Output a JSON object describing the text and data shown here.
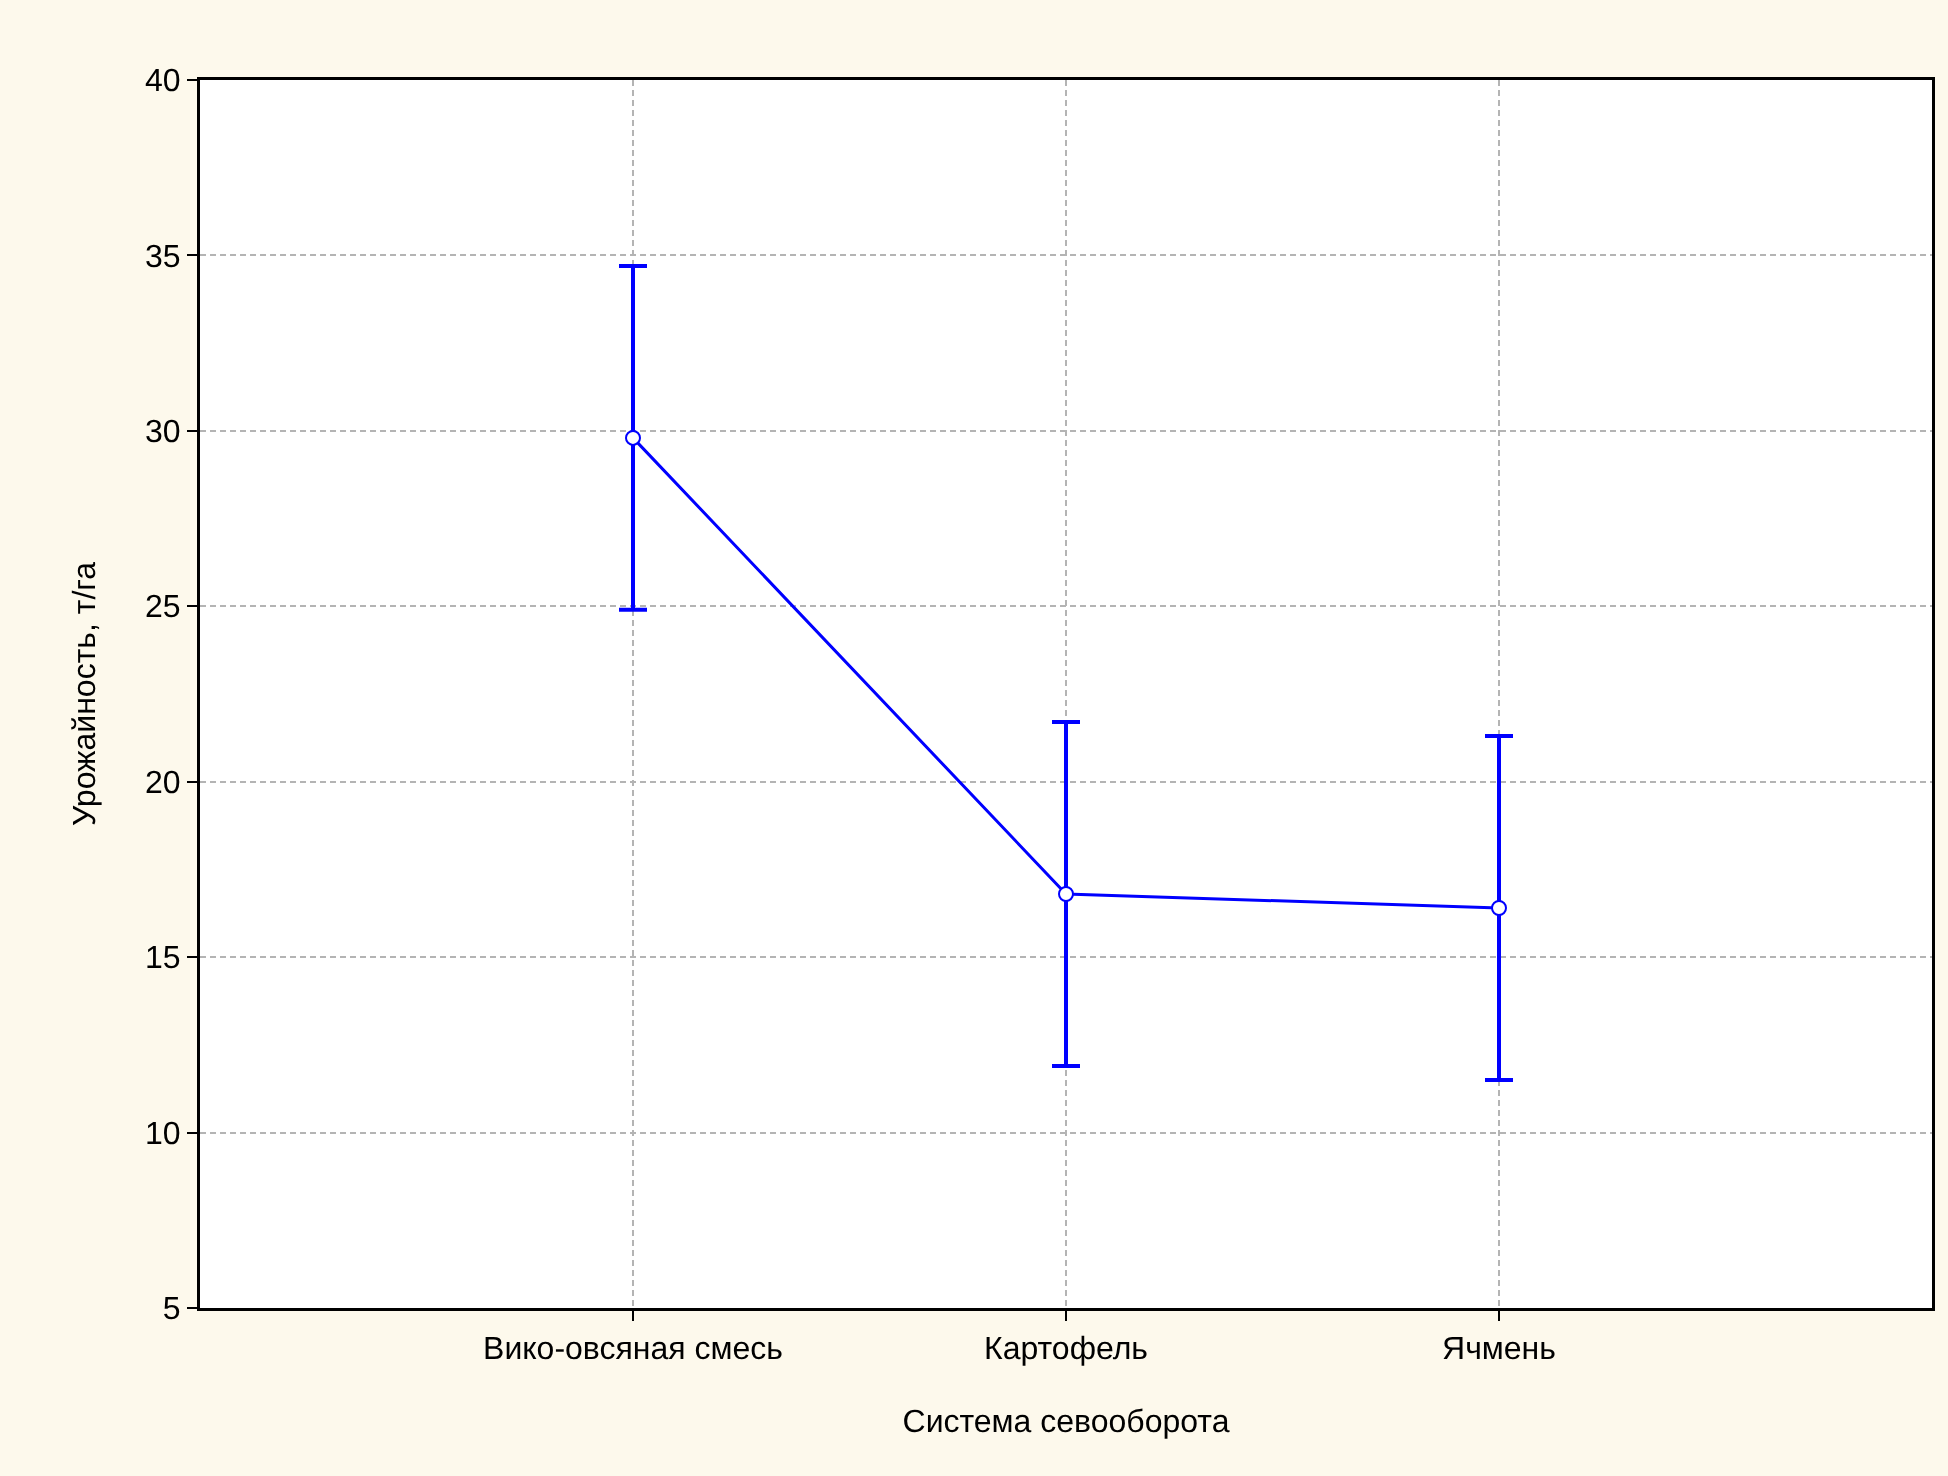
{
  "chart_data": {
    "type": "line",
    "xlabel": "Система севооборота",
    "ylabel": "Урожайность, т/га",
    "categories": [
      "Вико-овсяная смесь",
      "Картофель",
      "Ячмень"
    ],
    "series": [
      {
        "color": "#0000ff",
        "values": [
          29.8,
          16.8,
          16.4
        ],
        "errors": [
          4.9,
          4.9,
          4.9
        ]
      }
    ],
    "ylim": [
      5,
      40
    ],
    "yticks": [
      5,
      10,
      15,
      20,
      25,
      30,
      35,
      40
    ],
    "grid": true,
    "marker": "circle",
    "line_style": "solid"
  }
}
